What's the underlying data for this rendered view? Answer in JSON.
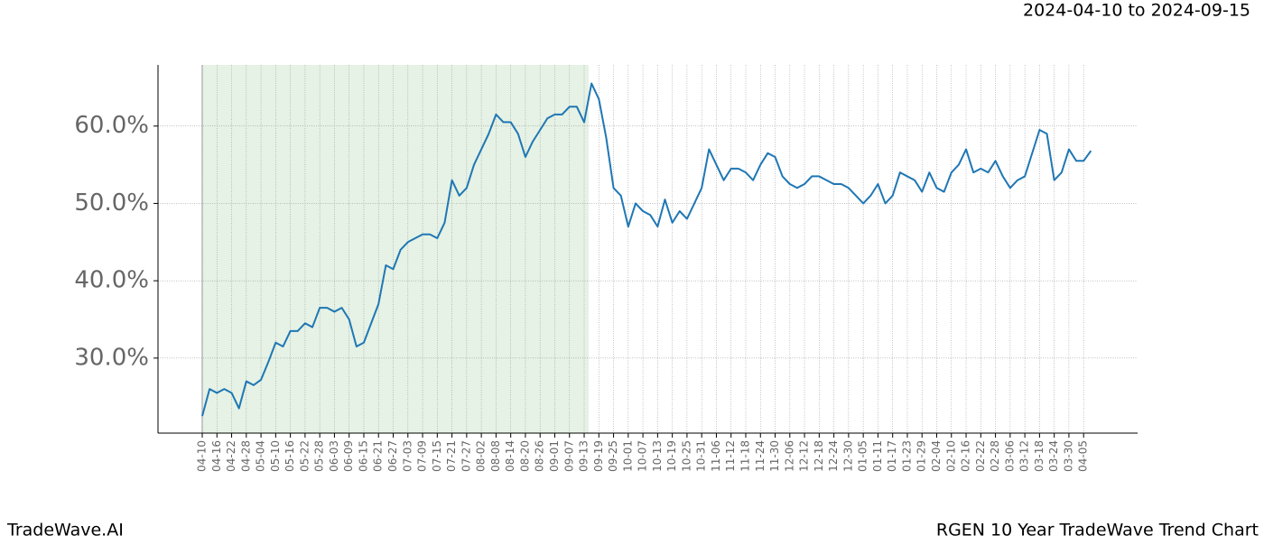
{
  "chart_data": {
    "type": "line",
    "title": "RGEN 10 Year TradeWave Trend Chart",
    "subtitle": "2024-04-10 to 2024-09-15",
    "brand": "TradeWave.AI",
    "categories": [
      "04-10",
      null,
      "04-16",
      null,
      "04-22",
      null,
      "04-28",
      null,
      "05-04",
      null,
      "05-10",
      null,
      "05-16",
      null,
      "05-22",
      null,
      "05-28",
      null,
      "06-03",
      null,
      "06-09",
      null,
      "06-15",
      null,
      "06-21",
      null,
      "06-27",
      null,
      "07-03",
      null,
      "07-09",
      null,
      "07-15",
      null,
      "07-21",
      null,
      "07-27",
      null,
      "08-02",
      null,
      "08-08",
      null,
      "08-14",
      null,
      "08-20",
      null,
      "08-26",
      null,
      "09-01",
      null,
      "09-07",
      null,
      "09-13",
      null,
      "09-19",
      null,
      "09-25",
      null,
      "10-01",
      null,
      "10-07",
      null,
      "10-13",
      null,
      "10-19",
      null,
      "10-25",
      null,
      "10-31",
      null,
      "11-06",
      null,
      "11-12",
      null,
      "11-18",
      null,
      "11-24",
      null,
      "11-30",
      null,
      "12-06",
      null,
      "12-12",
      null,
      "12-18",
      null,
      "12-24",
      null,
      "12-30",
      null,
      "01-05",
      null,
      "01-11",
      null,
      "01-17",
      null,
      "01-23",
      null,
      "01-29",
      null,
      "02-04",
      null,
      "02-10",
      null,
      "02-16",
      null,
      "02-22",
      null,
      "02-28",
      null,
      "03-06",
      null,
      "03-12",
      null,
      "03-18",
      null,
      "03-24",
      null,
      "03-30",
      null,
      "04-05",
      null
    ],
    "series": [
      {
        "color": "#1f77b4",
        "values": [
          22.5,
          26,
          25.5,
          26,
          25.5,
          23.5,
          27,
          26.5,
          27.2,
          29.5,
          32,
          31.5,
          33.5,
          33.5,
          34.5,
          34,
          36.5,
          36.5,
          36,
          36.5,
          35,
          31.5,
          32,
          34.5,
          37,
          42,
          41.5,
          44,
          45,
          45.5,
          46,
          46,
          45.5,
          47.5,
          53,
          51,
          52,
          55,
          57,
          59,
          61.5,
          60.5,
          60.5,
          59,
          56,
          58,
          59.5,
          61,
          61.5,
          61.5,
          62.5,
          62.5,
          60.5,
          65.5,
          63.5,
          58.5,
          52,
          51,
          47,
          50,
          49,
          48.5,
          47,
          50.5,
          47.5,
          49,
          48,
          50,
          52,
          57,
          55,
          53,
          54.5,
          54.5,
          54,
          53,
          55,
          56.5,
          56,
          53.5,
          52.5,
          52,
          52.5,
          53.5,
          53.5,
          53,
          52.5,
          52.5,
          52,
          51,
          50,
          51,
          52.5,
          50,
          51,
          54,
          53.5,
          53,
          51.5,
          54,
          52,
          51.5,
          54,
          55,
          57,
          54,
          54.5,
          54,
          55.5,
          53.5,
          52,
          53,
          53.5,
          56.5,
          59.5,
          59,
          53,
          54,
          57,
          55.5,
          55.5,
          56.8
        ]
      }
    ],
    "highlight_range": [
      "04-10",
      "09-13"
    ],
    "highlight_color": "#e5f2e5",
    "ylim": [
      20.3,
      67.9
    ],
    "yticks": [
      {
        "value": 30,
        "label": "30.0%"
      },
      {
        "value": 40,
        "label": "40.0%"
      },
      {
        "value": 50,
        "label": "50.0%"
      },
      {
        "value": 60,
        "label": "60.0%"
      }
    ],
    "grid": true
  }
}
